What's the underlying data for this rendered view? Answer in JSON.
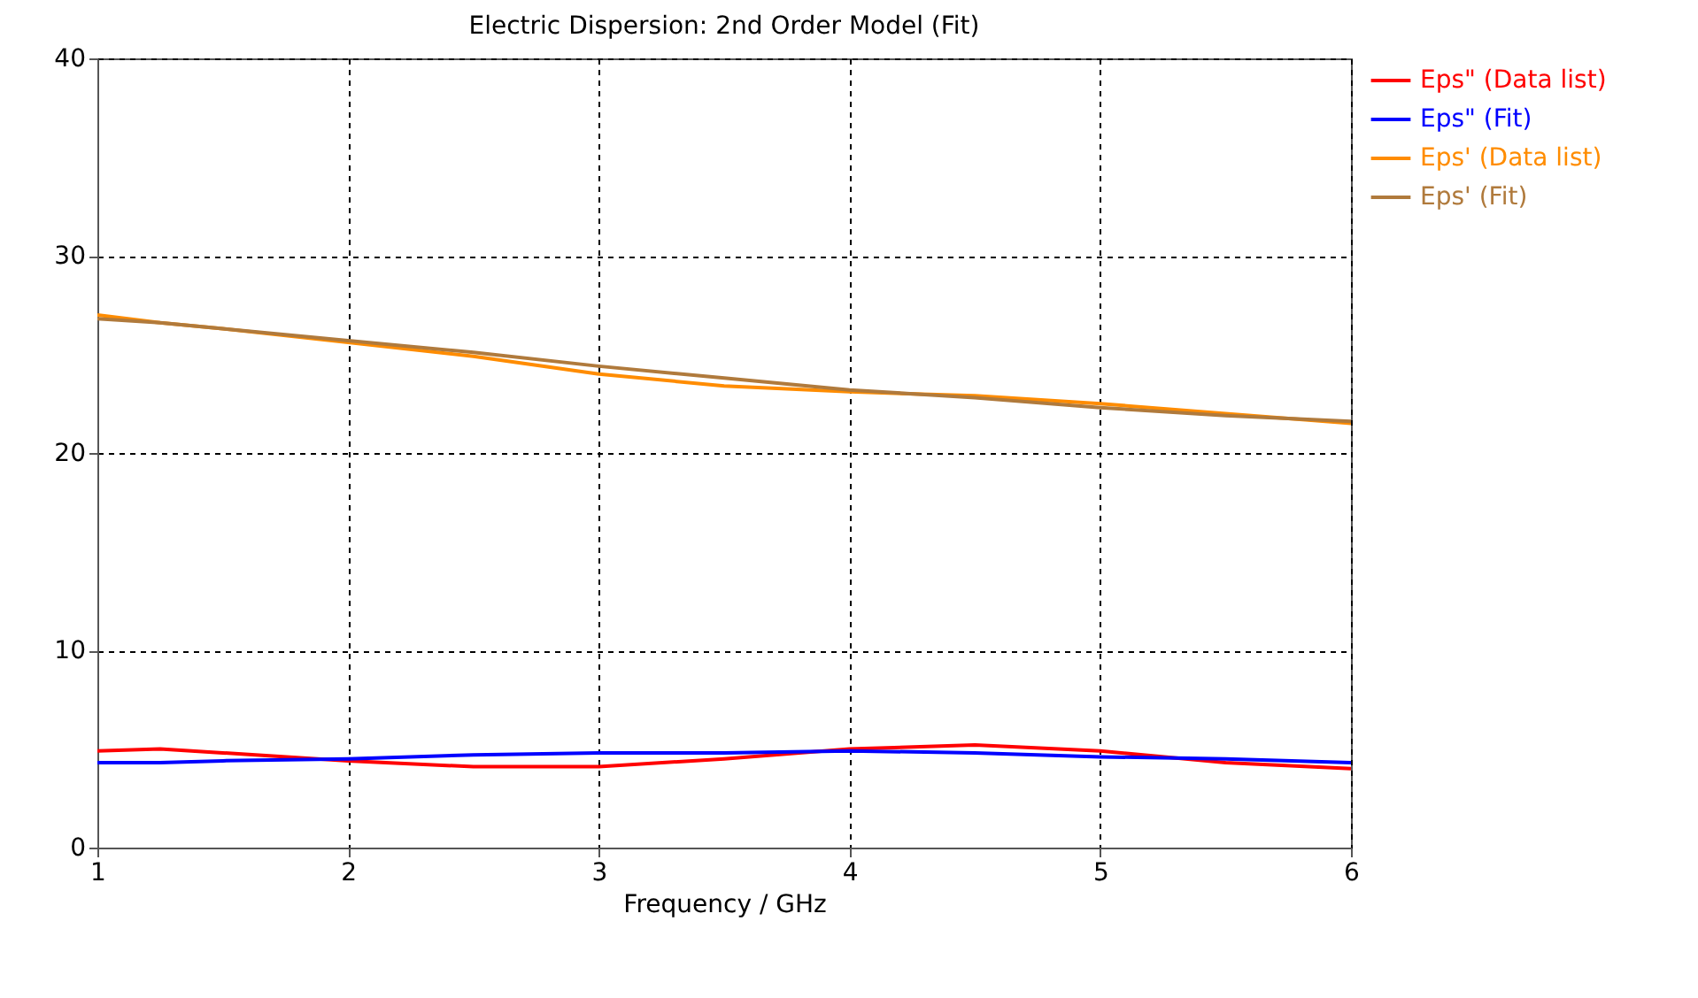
{
  "chart_data": {
    "type": "line",
    "title": "Electric Dispersion: 2nd Order Model (Fit)",
    "xlabel": "Frequency / GHz",
    "x": [
      1,
      1.25,
      1.5,
      2,
      2.5,
      3,
      3.5,
      4,
      4.5,
      5,
      5.5,
      6
    ],
    "series": [
      {
        "name": "Eps\" (Data list)",
        "color": "#ff0000",
        "values": [
          4.9,
          5.0,
          4.8,
          4.4,
          4.1,
          4.1,
          4.5,
          5.0,
          5.2,
          4.9,
          4.3,
          4.0
        ]
      },
      {
        "name": "Eps\" (Fit)",
        "color": "#0000ff",
        "values": [
          4.3,
          4.3,
          4.4,
          4.5,
          4.7,
          4.8,
          4.8,
          4.9,
          4.8,
          4.6,
          4.5,
          4.3
        ]
      },
      {
        "name": "Eps' (Data list)",
        "color": "#ff8c00",
        "values": [
          27.0,
          26.6,
          26.3,
          25.6,
          24.9,
          24.0,
          23.4,
          23.1,
          22.9,
          22.5,
          22.0,
          21.5
        ]
      },
      {
        "name": "Eps' (Fit)",
        "color": "#b07a3c",
        "values": [
          26.8,
          26.6,
          26.3,
          25.7,
          25.1,
          24.4,
          23.8,
          23.2,
          22.8,
          22.3,
          21.9,
          21.6
        ]
      }
    ],
    "xlim": [
      1,
      6
    ],
    "xticks": [
      1,
      2,
      3,
      4,
      5,
      6
    ],
    "ylim": [
      0,
      40
    ],
    "yticks": [
      0,
      10,
      20,
      30,
      40
    ],
    "grid": true,
    "legend": "top right",
    "line_style": "solid"
  }
}
